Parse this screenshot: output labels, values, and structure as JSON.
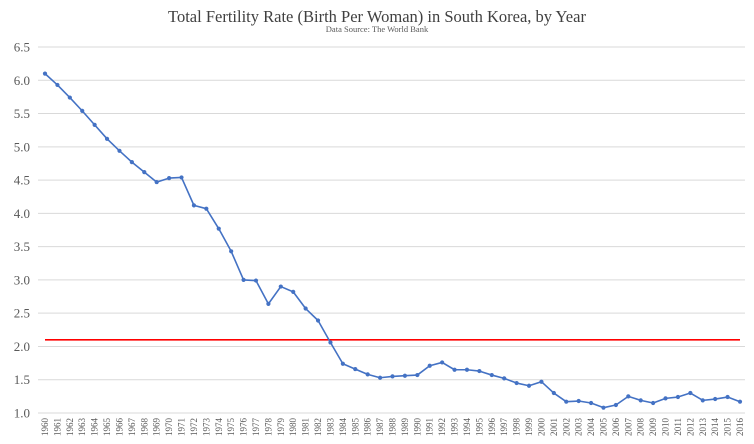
{
  "chart_data": {
    "type": "line",
    "title": "Total Fertility Rate (Birth Per Woman) in South Korea, by Year",
    "subtitle": "Data Source: The World Bank",
    "xlabel": "",
    "ylabel": "",
    "ylim": [
      1.0,
      6.5
    ],
    "yticks": [
      "1.0",
      "1.5",
      "2.0",
      "2.5",
      "3.0",
      "3.5",
      "4.0",
      "4.5",
      "5.0",
      "5.5",
      "6.0",
      "6.5"
    ],
    "grid": true,
    "legend": "none",
    "x": [
      "1960",
      "1961",
      "1962",
      "1963",
      "1964",
      "1965",
      "1966",
      "1967",
      "1968",
      "1969",
      "1970",
      "1971",
      "1972",
      "1973",
      "1974",
      "1975",
      "1976",
      "1977",
      "1978",
      "1979",
      "1980",
      "1981",
      "1982",
      "1983",
      "1984",
      "1985",
      "1986",
      "1987",
      "1988",
      "1989",
      "1990",
      "1991",
      "1992",
      "1993",
      "1994",
      "1995",
      "1996",
      "1997",
      "1998",
      "1999",
      "2000",
      "2001",
      "2002",
      "2003",
      "2004",
      "2005",
      "2006",
      "2007",
      "2008",
      "2009",
      "2010",
      "2011",
      "2012",
      "2013",
      "2014",
      "2015",
      "2016"
    ],
    "series": [
      {
        "color": "#4472c4",
        "values": [
          6.1,
          5.93,
          5.74,
          5.54,
          5.33,
          5.12,
          4.94,
          4.77,
          4.62,
          4.47,
          4.53,
          4.54,
          4.12,
          4.07,
          3.77,
          3.43,
          3.0,
          2.99,
          2.64,
          2.9,
          2.82,
          2.57,
          2.39,
          2.06,
          1.74,
          1.66,
          1.58,
          1.53,
          1.55,
          1.56,
          1.57,
          1.71,
          1.76,
          1.65,
          1.65,
          1.63,
          1.57,
          1.52,
          1.45,
          1.41,
          1.47,
          1.3,
          1.17,
          1.18,
          1.15,
          1.08,
          1.12,
          1.25,
          1.19,
          1.15,
          1.22,
          1.24,
          1.3,
          1.19,
          1.21,
          1.24,
          1.17
        ]
      }
    ],
    "reference_line": {
      "value": 2.1,
      "color": "#ff0000"
    }
  }
}
